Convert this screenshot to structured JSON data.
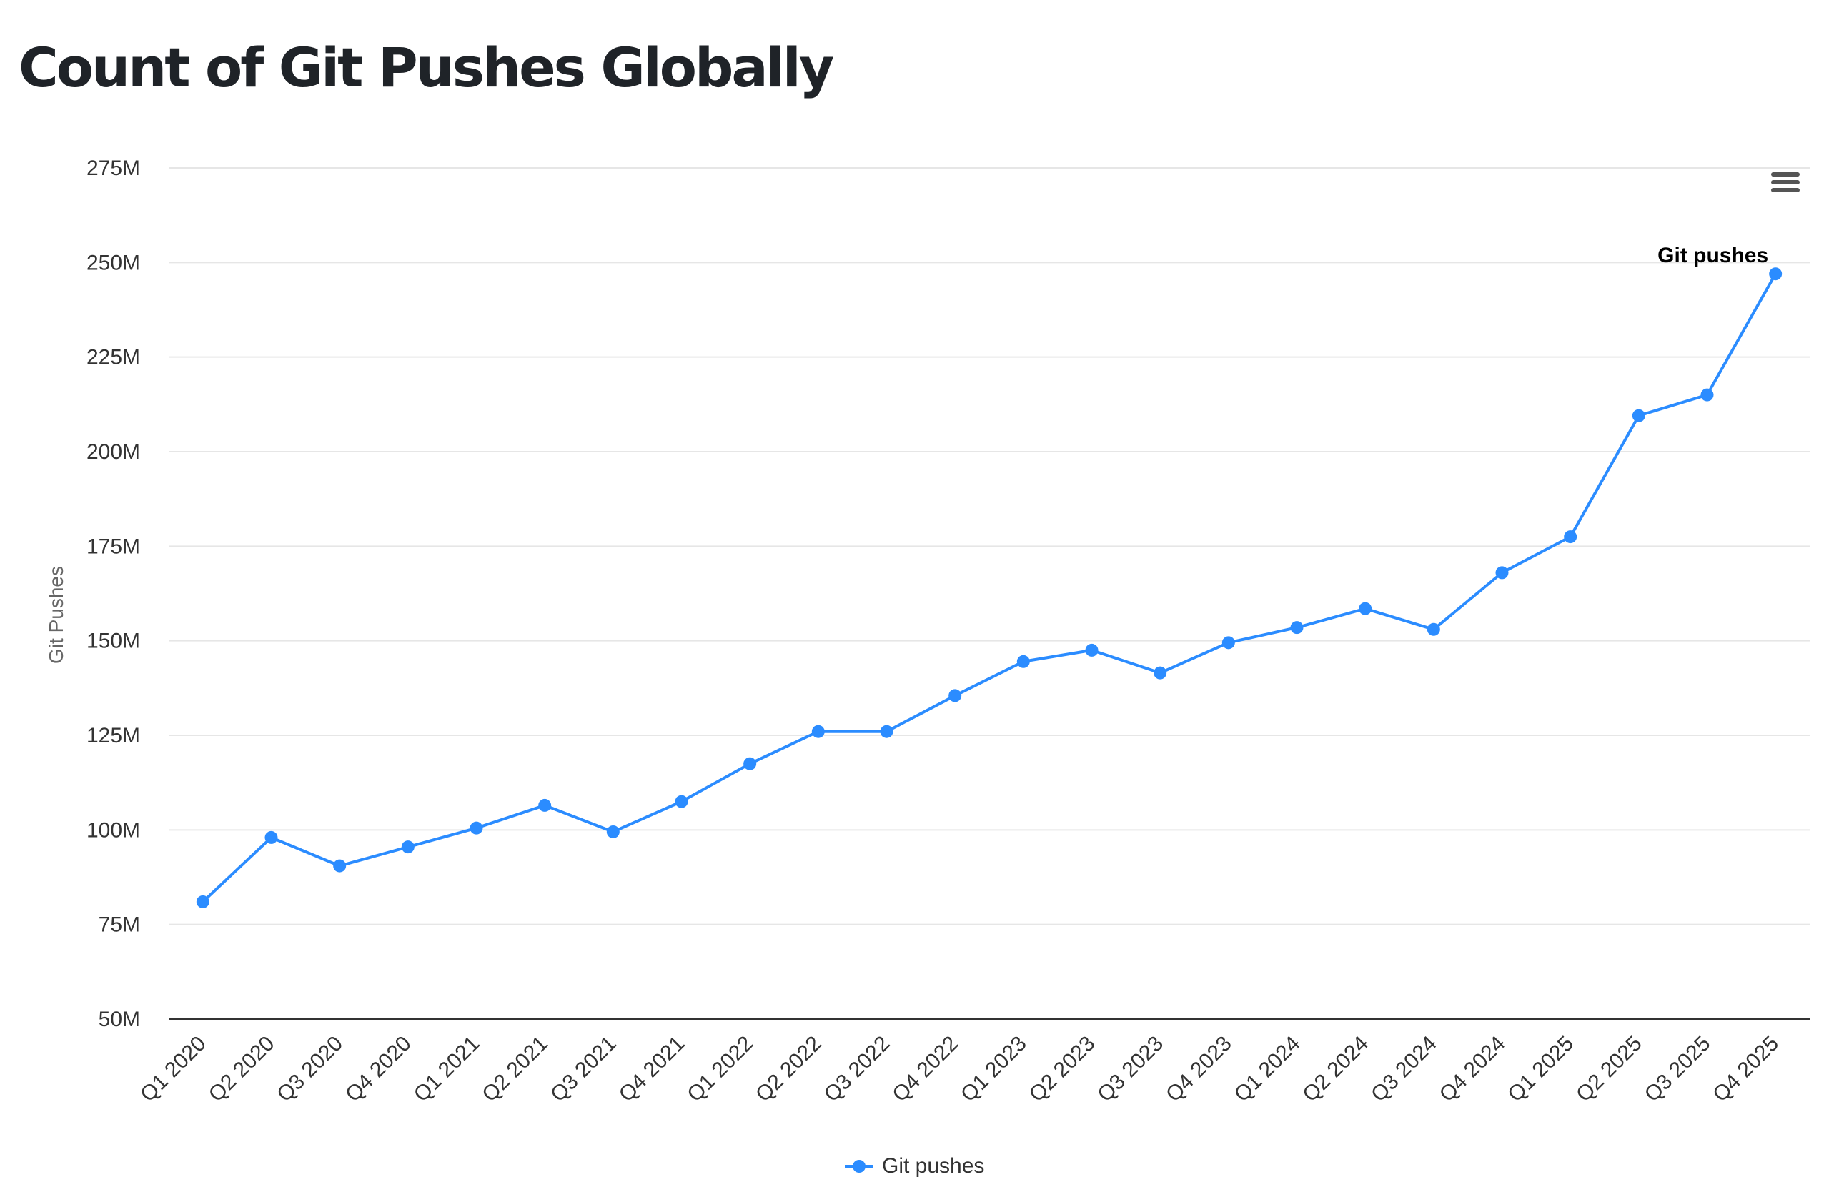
{
  "page": {
    "title": "Count of Git Pushes Globally",
    "menu_icon": "hamburger-menu-icon"
  },
  "colors": {
    "series": "#2b8cff",
    "grid": "#e6e6e6",
    "axis": "#333333",
    "title": "#1f2328"
  },
  "chart_data": {
    "type": "line",
    "title": "Count of Git Pushes Globally",
    "xlabel": "",
    "ylabel": "Git Pushes",
    "categories": [
      "Q1 2020",
      "Q2 2020",
      "Q3 2020",
      "Q4 2020",
      "Q1 2021",
      "Q2 2021",
      "Q3 2021",
      "Q4 2021",
      "Q1 2022",
      "Q2 2022",
      "Q3 2022",
      "Q4 2022",
      "Q1 2023",
      "Q2 2023",
      "Q3 2023",
      "Q4 2023",
      "Q1 2024",
      "Q2 2024",
      "Q3 2024",
      "Q4 2024",
      "Q1 2025",
      "Q2 2025",
      "Q3 2025",
      "Q4 2025"
    ],
    "series": [
      {
        "name": "Git pushes",
        "values": [
          81,
          98,
          90.5,
          95.5,
          100.5,
          106.5,
          99.5,
          107.5,
          117.5,
          126,
          126,
          135.5,
          144.5,
          147.5,
          141.5,
          149.5,
          153.5,
          158.5,
          153,
          168,
          177.5,
          209.5,
          215,
          247
        ]
      }
    ],
    "value_unit": "M",
    "ylim": [
      50,
      275
    ],
    "yticks": [
      50,
      75,
      100,
      125,
      150,
      175,
      200,
      225,
      250,
      275
    ],
    "ytick_labels": [
      "50M",
      "75M",
      "100M",
      "125M",
      "150M",
      "175M",
      "200M",
      "225M",
      "250M",
      "275M"
    ],
    "grid": true,
    "legend": "bottom-center",
    "annotation": "Git pushes"
  }
}
